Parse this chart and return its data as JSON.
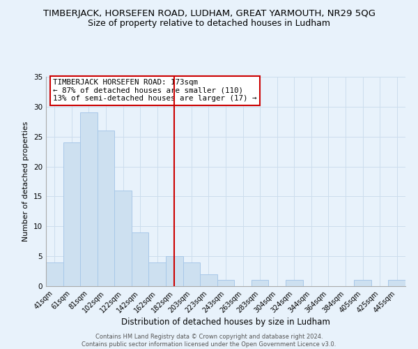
{
  "title": "TIMBERJACK, HORSEFEN ROAD, LUDHAM, GREAT YARMOUTH, NR29 5QG",
  "subtitle": "Size of property relative to detached houses in Ludham",
  "xlabel": "Distribution of detached houses by size in Ludham",
  "ylabel": "Number of detached properties",
  "bar_labels": [
    "41sqm",
    "61sqm",
    "81sqm",
    "102sqm",
    "122sqm",
    "142sqm",
    "162sqm",
    "182sqm",
    "203sqm",
    "223sqm",
    "243sqm",
    "263sqm",
    "283sqm",
    "304sqm",
    "324sqm",
    "344sqm",
    "364sqm",
    "384sqm",
    "405sqm",
    "425sqm",
    "445sqm"
  ],
  "bar_values": [
    4,
    24,
    29,
    26,
    16,
    9,
    4,
    5,
    4,
    2,
    1,
    0,
    1,
    0,
    1,
    0,
    0,
    0,
    1,
    0,
    1
  ],
  "bar_color": "#cde0f0",
  "bar_edge_color": "#a8c8e8",
  "vline_x": 7,
  "vline_color": "#cc0000",
  "ylim": [
    0,
    35
  ],
  "yticks": [
    0,
    5,
    10,
    15,
    20,
    25,
    30,
    35
  ],
  "annotation_title": "TIMBERJACK HORSEFEN ROAD: 173sqm",
  "annotation_line1": "← 87% of detached houses are smaller (110)",
  "annotation_line2": "13% of semi-detached houses are larger (17) →",
  "annotation_box_color": "#ffffff",
  "annotation_box_edge": "#cc0000",
  "footer_line1": "Contains HM Land Registry data © Crown copyright and database right 2024.",
  "footer_line2": "Contains public sector information licensed under the Open Government Licence v3.0.",
  "grid_color": "#ccdded",
  "background_color": "#e8f2fb",
  "title_fontsize": 9.5,
  "subtitle_fontsize": 9.0
}
